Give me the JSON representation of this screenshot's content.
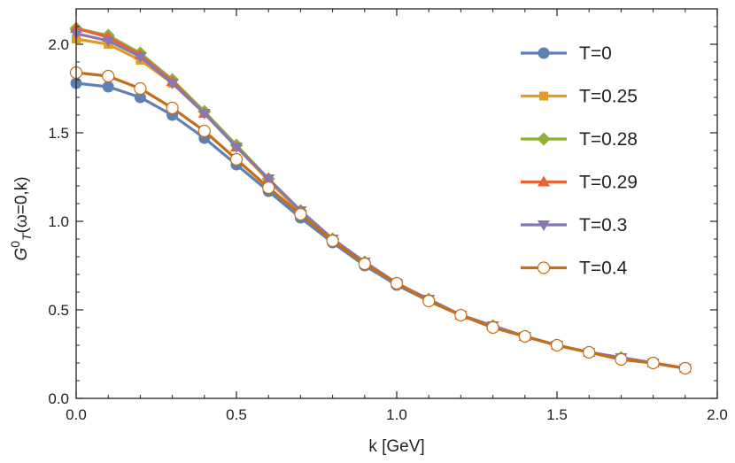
{
  "chart_data": {
    "type": "line",
    "xlabel": "k [GeV]",
    "ylabel": {
      "base": "G",
      "sup": "0",
      "sub": "T",
      "rest": "(ω=0,k)"
    },
    "xlim": [
      0.0,
      2.0
    ],
    "ylim": [
      0.0,
      2.2
    ],
    "xticks": [
      "0.0",
      "0.5",
      "1.0",
      "1.5",
      "2.0"
    ],
    "yticks": [
      "0.0",
      "0.5",
      "1.0",
      "1.5",
      "2.0"
    ],
    "legend_position": "top-right",
    "grid": false,
    "x": [
      0.0,
      0.1,
      0.2,
      0.3,
      0.4,
      0.5,
      0.6,
      0.7,
      0.8,
      0.9,
      1.0,
      1.1,
      1.2,
      1.3,
      1.4,
      1.5,
      1.6,
      1.7,
      1.8,
      1.9
    ],
    "series": [
      {
        "name": "T=0",
        "color": "#5e81b5",
        "marker": "circle",
        "values": [
          1.78,
          1.76,
          1.7,
          1.6,
          1.47,
          1.32,
          1.17,
          1.02,
          0.88,
          0.75,
          0.64,
          0.55,
          0.47,
          0.4,
          0.35,
          0.3,
          0.26,
          0.22,
          0.2,
          0.17
        ]
      },
      {
        "name": "T=0.25",
        "color": "#e19c24",
        "marker": "square",
        "values": [
          2.03,
          2.0,
          1.91,
          1.78,
          1.61,
          1.42,
          1.23,
          1.05,
          0.89,
          0.76,
          0.65,
          0.55,
          0.47,
          0.4,
          0.35,
          0.3,
          0.26,
          0.22,
          0.2,
          0.17
        ]
      },
      {
        "name": "T=0.28",
        "color": "#8fb032",
        "marker": "diamond",
        "values": [
          2.09,
          2.05,
          1.95,
          1.8,
          1.62,
          1.43,
          1.24,
          1.06,
          0.9,
          0.77,
          0.65,
          0.56,
          0.47,
          0.41,
          0.35,
          0.3,
          0.26,
          0.23,
          0.2,
          0.17
        ]
      },
      {
        "name": "T=0.29",
        "color": "#eb6235",
        "marker": "triangle",
        "values": [
          2.09,
          2.04,
          1.94,
          1.79,
          1.61,
          1.42,
          1.24,
          1.06,
          0.9,
          0.77,
          0.65,
          0.56,
          0.47,
          0.41,
          0.35,
          0.3,
          0.26,
          0.23,
          0.2,
          0.17
        ]
      },
      {
        "name": "T=0.3",
        "color": "#8778b3",
        "marker": "triangle-down",
        "values": [
          2.06,
          2.02,
          1.93,
          1.78,
          1.61,
          1.42,
          1.24,
          1.06,
          0.9,
          0.77,
          0.65,
          0.56,
          0.47,
          0.41,
          0.35,
          0.3,
          0.26,
          0.23,
          0.2,
          0.17
        ]
      },
      {
        "name": "T=0.4",
        "color": "#c56e1a",
        "marker": "open-circle",
        "values": [
          1.84,
          1.82,
          1.75,
          1.64,
          1.51,
          1.35,
          1.19,
          1.04,
          0.89,
          0.76,
          0.65,
          0.55,
          0.47,
          0.4,
          0.35,
          0.3,
          0.26,
          0.22,
          0.2,
          0.17
        ]
      }
    ]
  }
}
